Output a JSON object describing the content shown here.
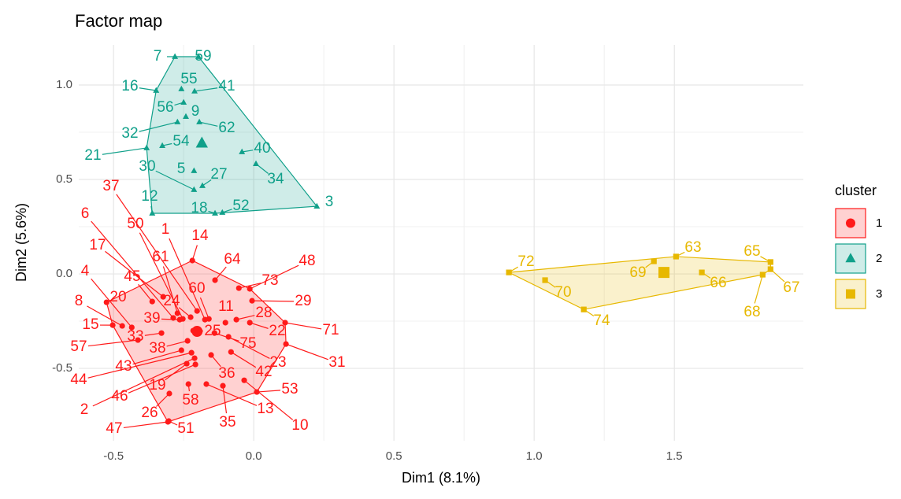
{
  "chart_data": {
    "type": "scatter",
    "title": "Factor map",
    "x_label": "Dim1 (8.1%)",
    "y_label": "Dim2 (5.6%)",
    "xlim": [
      -0.624,
      1.96
    ],
    "ylim": [
      -0.883,
      1.2125
    ],
    "xticks": [
      -0.5,
      {
        "value": 0,
        "label": "0.0"
      },
      0.5,
      {
        "value": 1,
        "label": "1.0"
      },
      1.5
    ],
    "yticks": [
      -0.5,
      {
        "value": 0,
        "label": "0.0"
      },
      0.5,
      {
        "value": 1,
        "label": "1.0"
      }
    ],
    "grid": true,
    "legend_title": "cluster",
    "legend": "right",
    "series": [
      {
        "name": "1",
        "color": "#ff1a1a",
        "shape": "circle",
        "labels": [
          "37",
          "6",
          "50",
          "1",
          "14",
          "17",
          "61",
          "64",
          "48",
          "45",
          "4",
          "60",
          "73",
          "20",
          "24",
          "11",
          "29",
          "8",
          "39",
          "28",
          "15",
          "33",
          "22",
          "71",
          "25",
          "75",
          "38",
          "57",
          "23",
          "31",
          "43",
          "42",
          "36",
          "44",
          "19",
          "53",
          "46",
          "58",
          "2",
          "26",
          "13",
          "35",
          "10",
          "47",
          "51"
        ],
        "x": [
          -0.202,
          -0.287,
          -0.253,
          -0.174,
          -0.219,
          -0.323,
          -0.272,
          -0.138,
          -0.014,
          -0.362,
          -0.435,
          -0.16,
          -0.053,
          -0.525,
          -0.225,
          -0.101,
          -0.006,
          -0.469,
          -0.264,
          -0.062,
          -0.503,
          -0.329,
          -0.014,
          0.112,
          -0.216,
          -0.14,
          -0.236,
          -0.413,
          -0.09,
          0.115,
          -0.258,
          -0.081,
          -0.152,
          -0.222,
          -0.239,
          0.011,
          -0.208,
          -0.233,
          -0.211,
          -0.301,
          -0.169,
          -0.11,
          -0.034,
          -0.306,
          -0.303
        ],
        "y": [
          -0.196,
          -0.233,
          -0.238,
          -0.242,
          0.071,
          -0.121,
          -0.208,
          -0.033,
          -0.079,
          -0.146,
          -0.283,
          -0.238,
          -0.075,
          -0.15,
          -0.229,
          -0.258,
          -0.142,
          -0.275,
          -0.242,
          -0.242,
          -0.271,
          -0.313,
          -0.258,
          -0.258,
          -0.3,
          -0.313,
          -0.354,
          -0.35,
          -0.333,
          -0.371,
          -0.404,
          -0.413,
          -0.429,
          -0.417,
          -0.475,
          -0.625,
          -0.479,
          -0.583,
          -0.446,
          -0.633,
          -0.583,
          -0.592,
          -0.563,
          -0.783,
          -0.779
        ],
        "center": [
          -0.202,
          -0.304
        ]
      },
      {
        "name": "2",
        "color": "#10a08a",
        "shape": "triangle",
        "labels": [
          "7",
          "59",
          "16",
          "55",
          "41",
          "56",
          "9",
          "32",
          "62",
          "54",
          "40",
          "21",
          "30",
          "5",
          "27",
          "34",
          "12",
          "18",
          "52",
          "3"
        ],
        "x": [
          -0.281,
          -0.197,
          -0.348,
          -0.258,
          -0.211,
          -0.25,
          -0.242,
          -0.272,
          -0.194,
          -0.326,
          -0.042,
          -0.382,
          -0.213,
          -0.213,
          -0.183,
          0.008,
          -0.362,
          -0.138,
          -0.112,
          0.225
        ],
        "y": [
          1.15,
          1.15,
          0.971,
          0.979,
          0.967,
          0.908,
          0.833,
          0.804,
          0.804,
          0.679,
          0.646,
          0.667,
          0.446,
          0.546,
          0.467,
          0.583,
          0.321,
          0.321,
          0.325,
          0.358
        ],
        "center": [
          -0.185,
          0.692
        ]
      },
      {
        "name": "3",
        "color": "#e7b800",
        "shape": "square",
        "labels": [
          "72",
          "70",
          "74",
          "69",
          "63",
          "66",
          "65",
          "67",
          "68"
        ],
        "x": [
          0.91,
          1.039,
          1.177,
          1.427,
          1.506,
          1.598,
          1.843,
          1.843,
          1.815
        ],
        "y": [
          0.008,
          -0.033,
          -0.188,
          0.067,
          0.092,
          0.008,
          0.063,
          0.025,
          -0.004
        ],
        "center": [
          1.463,
          0.008
        ]
      }
    ]
  }
}
